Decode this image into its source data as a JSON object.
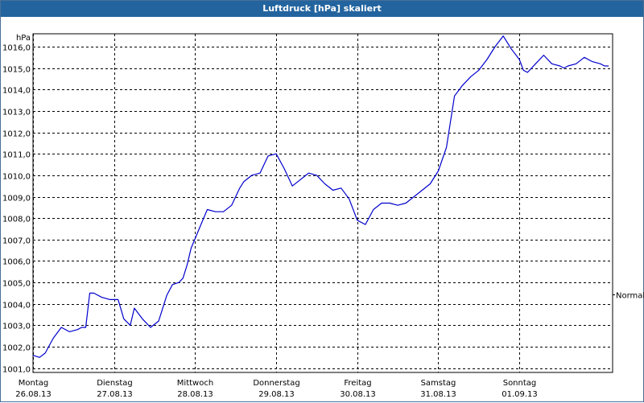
{
  "window": {
    "title": "Luftdruck [hPa] skaliert"
  },
  "chart_data": {
    "type": "line",
    "title": "Luftdruck [hPa] skaliert",
    "ylabel": "hPa",
    "xlabel": "",
    "ylim": [
      1000.8,
      1016.6
    ],
    "yticks": [
      "1001,0",
      "1002,0",
      "1003,0",
      "1004,0",
      "1005,0",
      "1006,0",
      "1007,0",
      "1008,0",
      "1009,0",
      "1010,0",
      "1011,0",
      "1012,0",
      "1013,0",
      "1014,0",
      "1015,0",
      "1016,0"
    ],
    "ytick_values": [
      1001,
      1002,
      1003,
      1004,
      1005,
      1006,
      1007,
      1008,
      1009,
      1010,
      1011,
      1012,
      1013,
      1014,
      1015,
      1016
    ],
    "categories": [
      {
        "day": "Montag",
        "date": "26.08.13"
      },
      {
        "day": "Dienstag",
        "date": "27.08.13"
      },
      {
        "day": "Mittwoch",
        "date": "28.08.13"
      },
      {
        "day": "Donnerstag",
        "date": "29.08.13"
      },
      {
        "day": "Freitag",
        "date": "30.08.13"
      },
      {
        "day": "Samstag",
        "date": "31.08.13"
      },
      {
        "day": "Sonntag",
        "date": "01.09.13"
      }
    ],
    "xlim": [
      0,
      7.15
    ],
    "grid": true,
    "line_color": "#0000cc",
    "annotation": "Normal",
    "series": [
      {
        "x": [
          0,
          0.08,
          0.15,
          0.25,
          0.35,
          0.45,
          0.55,
          0.6,
          0.65,
          0.7,
          0.75,
          0.85,
          0.95,
          1.05,
          1.12,
          1.2,
          1.25,
          1.35,
          1.45,
          1.55,
          1.65,
          1.72,
          1.8,
          1.85,
          1.9,
          1.95,
          2.05,
          2.15,
          2.25,
          2.35,
          2.45,
          2.55,
          2.6,
          2.7,
          2.8,
          2.9,
          3.0,
          3.1,
          3.2,
          3.3,
          3.4,
          3.5,
          3.6,
          3.7,
          3.8,
          3.9,
          4.0,
          4.1,
          4.2,
          4.3,
          4.4,
          4.5,
          4.6,
          4.7,
          4.8,
          4.9,
          5.0,
          5.1,
          5.2,
          5.3,
          5.4,
          5.5,
          5.6,
          5.7,
          5.8,
          5.9,
          6.0,
          6.05,
          6.1,
          6.2,
          6.3,
          6.4,
          6.5,
          6.55,
          6.6,
          6.7,
          6.8,
          6.9,
          7.0,
          7.05,
          7.1
        ],
        "y": [
          1001.6,
          1001.5,
          1001.7,
          1002.4,
          1002.9,
          1002.7,
          1002.8,
          1002.9,
          1002.9,
          1004.5,
          1004.5,
          1004.3,
          1004.2,
          1004.2,
          1003.3,
          1003.0,
          1003.8,
          1003.3,
          1002.9,
          1003.2,
          1004.4,
          1004.9,
          1005.0,
          1005.2,
          1005.8,
          1006.6,
          1007.5,
          1008.4,
          1008.3,
          1008.3,
          1008.6,
          1009.4,
          1009.7,
          1010.0,
          1010.1,
          1010.9,
          1011.0,
          1010.3,
          1009.5,
          1009.8,
          1010.1,
          1010.0,
          1009.6,
          1009.3,
          1009.4,
          1008.9,
          1007.9,
          1007.7,
          1008.4,
          1008.7,
          1008.7,
          1008.6,
          1008.7,
          1009.0,
          1009.3,
          1009.6,
          1010.2,
          1011.3,
          1013.7,
          1014.2,
          1014.6,
          1014.9,
          1015.4,
          1016.0,
          1016.5,
          1015.9,
          1015.4,
          1014.9,
          1014.8,
          1015.2,
          1015.6,
          1015.2,
          1015.1,
          1015.0,
          1015.1,
          1015.2,
          1015.5,
          1015.3,
          1015.2,
          1015.1,
          1015.1
        ]
      }
    ]
  }
}
